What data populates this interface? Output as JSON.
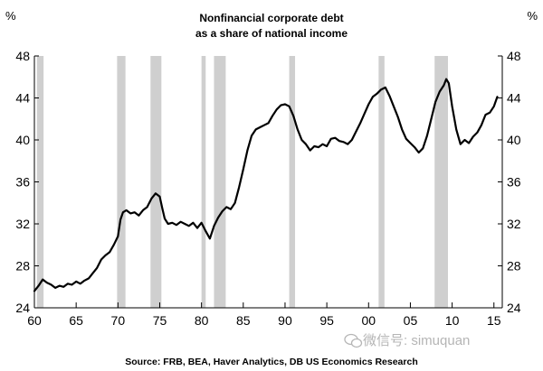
{
  "chart_data": {
    "type": "line",
    "title": "Nonfinancial corporate debt",
    "subtitle": "as a share of national income",
    "ylabel_left": "%",
    "ylabel_right": "%",
    "source": "Source: FRB, BEA,  Haver  Analytics, DB US Economics Research",
    "xlim": [
      1960,
      2016
    ],
    "ylim": [
      24,
      48
    ],
    "x_ticks": [
      1960,
      1965,
      1970,
      1975,
      1980,
      1985,
      1990,
      1995,
      2000,
      2005,
      2010,
      2015
    ],
    "x_tick_labels": [
      "60",
      "65",
      "70",
      "75",
      "80",
      "85",
      "90",
      "95",
      "00",
      "05",
      "10",
      "15"
    ],
    "y_ticks": [
      24,
      28,
      32,
      36,
      40,
      44,
      48
    ],
    "y_tick_labels": [
      "24",
      "28",
      "32",
      "36",
      "40",
      "44",
      "48"
    ],
    "grid": false,
    "recessions": [
      [
        1960.3,
        1961.1
      ],
      [
        1969.9,
        1970.9
      ],
      [
        1973.9,
        1975.2
      ],
      [
        1980.0,
        1980.5
      ],
      [
        1981.5,
        1982.9
      ],
      [
        1990.5,
        1991.2
      ],
      [
        2001.2,
        2001.9
      ],
      [
        2007.9,
        2009.5
      ]
    ],
    "series": [
      {
        "color": "#000000",
        "points": [
          [
            1960.0,
            25.6
          ],
          [
            1960.5,
            26.1
          ],
          [
            1961.0,
            26.7
          ],
          [
            1961.5,
            26.4
          ],
          [
            1962.0,
            26.2
          ],
          [
            1962.5,
            25.9
          ],
          [
            1963.0,
            26.1
          ],
          [
            1963.5,
            26.0
          ],
          [
            1964.0,
            26.3
          ],
          [
            1964.5,
            26.2
          ],
          [
            1965.0,
            26.5
          ],
          [
            1965.5,
            26.3
          ],
          [
            1966.0,
            26.6
          ],
          [
            1966.5,
            26.8
          ],
          [
            1967.0,
            27.3
          ],
          [
            1967.5,
            27.8
          ],
          [
            1968.0,
            28.6
          ],
          [
            1968.5,
            29.0
          ],
          [
            1969.0,
            29.3
          ],
          [
            1969.5,
            30.0
          ],
          [
            1970.0,
            30.8
          ],
          [
            1970.3,
            32.4
          ],
          [
            1970.6,
            33.1
          ],
          [
            1971.0,
            33.3
          ],
          [
            1971.5,
            33.0
          ],
          [
            1972.0,
            33.1
          ],
          [
            1972.5,
            32.8
          ],
          [
            1973.0,
            33.3
          ],
          [
            1973.5,
            33.6
          ],
          [
            1974.0,
            34.4
          ],
          [
            1974.5,
            34.9
          ],
          [
            1975.0,
            34.6
          ],
          [
            1975.3,
            33.5
          ],
          [
            1975.6,
            32.5
          ],
          [
            1976.0,
            32.0
          ],
          [
            1976.5,
            32.1
          ],
          [
            1977.0,
            31.9
          ],
          [
            1977.5,
            32.2
          ],
          [
            1978.0,
            32.0
          ],
          [
            1978.5,
            31.8
          ],
          [
            1979.0,
            32.1
          ],
          [
            1979.5,
            31.6
          ],
          [
            1980.0,
            32.1
          ],
          [
            1980.5,
            31.3
          ],
          [
            1981.0,
            30.6
          ],
          [
            1981.5,
            31.8
          ],
          [
            1982.0,
            32.6
          ],
          [
            1982.5,
            33.2
          ],
          [
            1983.0,
            33.6
          ],
          [
            1983.5,
            33.4
          ],
          [
            1984.0,
            34.0
          ],
          [
            1984.5,
            35.5
          ],
          [
            1985.0,
            37.2
          ],
          [
            1985.5,
            39.0
          ],
          [
            1986.0,
            40.4
          ],
          [
            1986.5,
            41.0
          ],
          [
            1987.0,
            41.2
          ],
          [
            1987.5,
            41.4
          ],
          [
            1988.0,
            41.6
          ],
          [
            1988.5,
            42.3
          ],
          [
            1989.0,
            42.9
          ],
          [
            1989.5,
            43.3
          ],
          [
            1990.0,
            43.4
          ],
          [
            1990.5,
            43.2
          ],
          [
            1991.0,
            42.3
          ],
          [
            1991.5,
            41.0
          ],
          [
            1992.0,
            40.0
          ],
          [
            1992.5,
            39.6
          ],
          [
            1993.0,
            39.0
          ],
          [
            1993.5,
            39.4
          ],
          [
            1994.0,
            39.3
          ],
          [
            1994.5,
            39.6
          ],
          [
            1995.0,
            39.4
          ],
          [
            1995.5,
            40.1
          ],
          [
            1996.0,
            40.2
          ],
          [
            1996.5,
            39.9
          ],
          [
            1997.0,
            39.8
          ],
          [
            1997.5,
            39.6
          ],
          [
            1998.0,
            40.0
          ],
          [
            1998.5,
            40.8
          ],
          [
            1999.0,
            41.6
          ],
          [
            1999.5,
            42.5
          ],
          [
            2000.0,
            43.4
          ],
          [
            2000.5,
            44.1
          ],
          [
            2001.0,
            44.4
          ],
          [
            2001.5,
            44.8
          ],
          [
            2002.0,
            45.0
          ],
          [
            2002.5,
            44.2
          ],
          [
            2003.0,
            43.2
          ],
          [
            2003.5,
            42.2
          ],
          [
            2004.0,
            41.0
          ],
          [
            2004.5,
            40.1
          ],
          [
            2005.0,
            39.7
          ],
          [
            2005.5,
            39.3
          ],
          [
            2006.0,
            38.8
          ],
          [
            2006.5,
            39.2
          ],
          [
            2007.0,
            40.4
          ],
          [
            2007.5,
            42.0
          ],
          [
            2008.0,
            43.6
          ],
          [
            2008.5,
            44.6
          ],
          [
            2009.0,
            45.2
          ],
          [
            2009.3,
            45.8
          ],
          [
            2009.6,
            45.4
          ],
          [
            2010.0,
            43.2
          ],
          [
            2010.5,
            41.0
          ],
          [
            2011.0,
            39.6
          ],
          [
            2011.5,
            40.0
          ],
          [
            2012.0,
            39.7
          ],
          [
            2012.5,
            40.3
          ],
          [
            2013.0,
            40.7
          ],
          [
            2013.5,
            41.4
          ],
          [
            2014.0,
            42.4
          ],
          [
            2014.5,
            42.6
          ],
          [
            2015.0,
            43.2
          ],
          [
            2015.4,
            44.1
          ]
        ]
      }
    ]
  },
  "watermark": {
    "icon": "wechat-icon",
    "text": "微信号: simuquan"
  }
}
